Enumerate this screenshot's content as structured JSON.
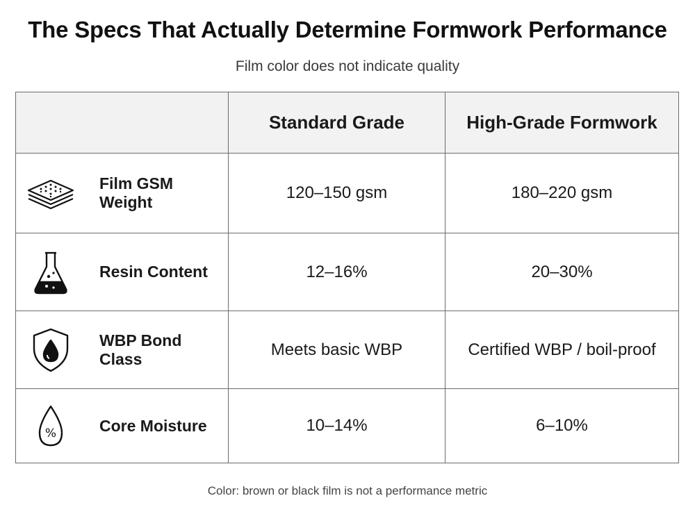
{
  "title": "The Specs That Actually Determine Formwork Performance",
  "subtitle": "Film color does not indicate quality",
  "table": {
    "columns": [
      "",
      "Standard Grade",
      "High-Grade Formwork"
    ],
    "rows": [
      {
        "icon": "layered-sheets-icon",
        "label": "Film GSM Weight",
        "standard": "120–150 gsm",
        "high": "180–220 gsm"
      },
      {
        "icon": "flask-icon",
        "label": "Resin Content",
        "standard": "12–16%",
        "high": "20–30%"
      },
      {
        "icon": "shield-drop-icon",
        "label": "WBP Bond Class",
        "standard": "Meets basic WBP",
        "high": "Certified WBP / boil-proof"
      },
      {
        "icon": "moisture-drop-percent-icon",
        "label": "Core Moisture",
        "standard": "10–14%",
        "high": "6–10%"
      }
    ]
  },
  "footer": "Color: brown or black film is not a performance metric"
}
